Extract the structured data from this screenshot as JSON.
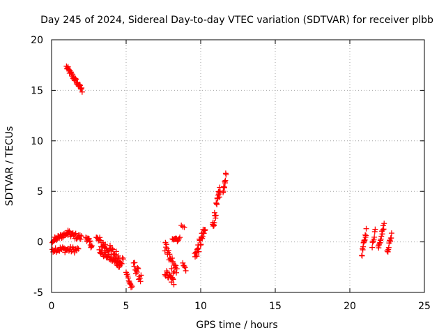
{
  "chart_data": {
    "type": "scatter",
    "title": "Day 245 of 2024, Sidereal Day-to-day VTEC variation (SDTVAR) for receiver plbb",
    "xlabel": "GPS time / hours",
    "ylabel": "SDTVAR / TECUs",
    "xlim": [
      0,
      25
    ],
    "ylim": [
      -5,
      20
    ],
    "xticks": [
      0,
      5,
      10,
      15,
      20,
      25
    ],
    "yticks": [
      -5,
      0,
      5,
      10,
      15,
      20
    ],
    "grid": true,
    "marker": "+",
    "color": "#ff0000",
    "segments": [
      {
        "x0": 1.0,
        "x1": 2.05,
        "y0": 17.3,
        "y1": 15.0,
        "n": 32,
        "jitter": 0.25
      },
      {
        "x0": 0.05,
        "x1": 1.1,
        "y0": 0.1,
        "y1": 0.9,
        "n": 26,
        "jitter": 0.25
      },
      {
        "x0": 0.05,
        "x1": 1.8,
        "y0": -0.7,
        "y1": -0.8,
        "n": 34,
        "jitter": 0.3
      },
      {
        "x0": 1.1,
        "x1": 2.0,
        "y0": 0.8,
        "y1": 0.4,
        "n": 20,
        "jitter": 0.3
      },
      {
        "x0": 2.3,
        "x1": 2.7,
        "y0": 0.5,
        "y1": -0.4,
        "n": 14,
        "jitter": 0.3
      },
      {
        "x0": 3.0,
        "x1": 4.8,
        "y0": 0.3,
        "y1": -1.9,
        "n": 40,
        "jitter": 0.5
      },
      {
        "x0": 3.2,
        "x1": 4.6,
        "y0": -0.9,
        "y1": -2.3,
        "n": 30,
        "jitter": 0.3
      },
      {
        "x0": 5.0,
        "x1": 5.4,
        "y0": -3.0,
        "y1": -4.7,
        "n": 12,
        "jitter": 0.3
      },
      {
        "x0": 5.5,
        "x1": 6.0,
        "y0": -2.2,
        "y1": -3.7,
        "n": 14,
        "jitter": 0.5
      },
      {
        "x0": 7.6,
        "x1": 8.4,
        "y0": -0.6,
        "y1": -3.2,
        "n": 24,
        "jitter": 0.7
      },
      {
        "x0": 7.6,
        "x1": 8.2,
        "y0": -3.0,
        "y1": -4.0,
        "n": 16,
        "jitter": 0.4
      },
      {
        "x0": 8.1,
        "x1": 8.6,
        "y0": 0.5,
        "y1": 0.2,
        "n": 10,
        "jitter": 0.3
      },
      {
        "x0": 8.7,
        "x1": 8.9,
        "y0": 1.7,
        "y1": 1.5,
        "n": 3,
        "jitter": 0.1
      },
      {
        "x0": 8.8,
        "x1": 9.0,
        "y0": -2.2,
        "y1": -2.7,
        "n": 5,
        "jitter": 0.2
      },
      {
        "x0": 9.6,
        "x1": 10.3,
        "y0": -1.5,
        "y1": 1.2,
        "n": 26,
        "jitter": 0.6
      },
      {
        "x0": 10.8,
        "x1": 11.3,
        "y0": 1.5,
        "y1": 5.2,
        "n": 24,
        "jitter": 0.6
      },
      {
        "x0": 11.5,
        "x1": 11.7,
        "y0": 4.8,
        "y1": 6.7,
        "n": 10,
        "jitter": 0.3
      },
      {
        "x0": 20.8,
        "x1": 21.1,
        "y0": -1.3,
        "y1": 1.1,
        "n": 14,
        "jitter": 0.3
      },
      {
        "x0": 21.5,
        "x1": 21.7,
        "y0": -0.5,
        "y1": 1.2,
        "n": 8,
        "jitter": 0.3
      },
      {
        "x0": 21.9,
        "x1": 22.3,
        "y0": -0.5,
        "y1": 1.7,
        "n": 14,
        "jitter": 0.3
      },
      {
        "x0": 22.5,
        "x1": 22.8,
        "y0": -1.0,
        "y1": 0.7,
        "n": 12,
        "jitter": 0.3
      }
    ]
  }
}
